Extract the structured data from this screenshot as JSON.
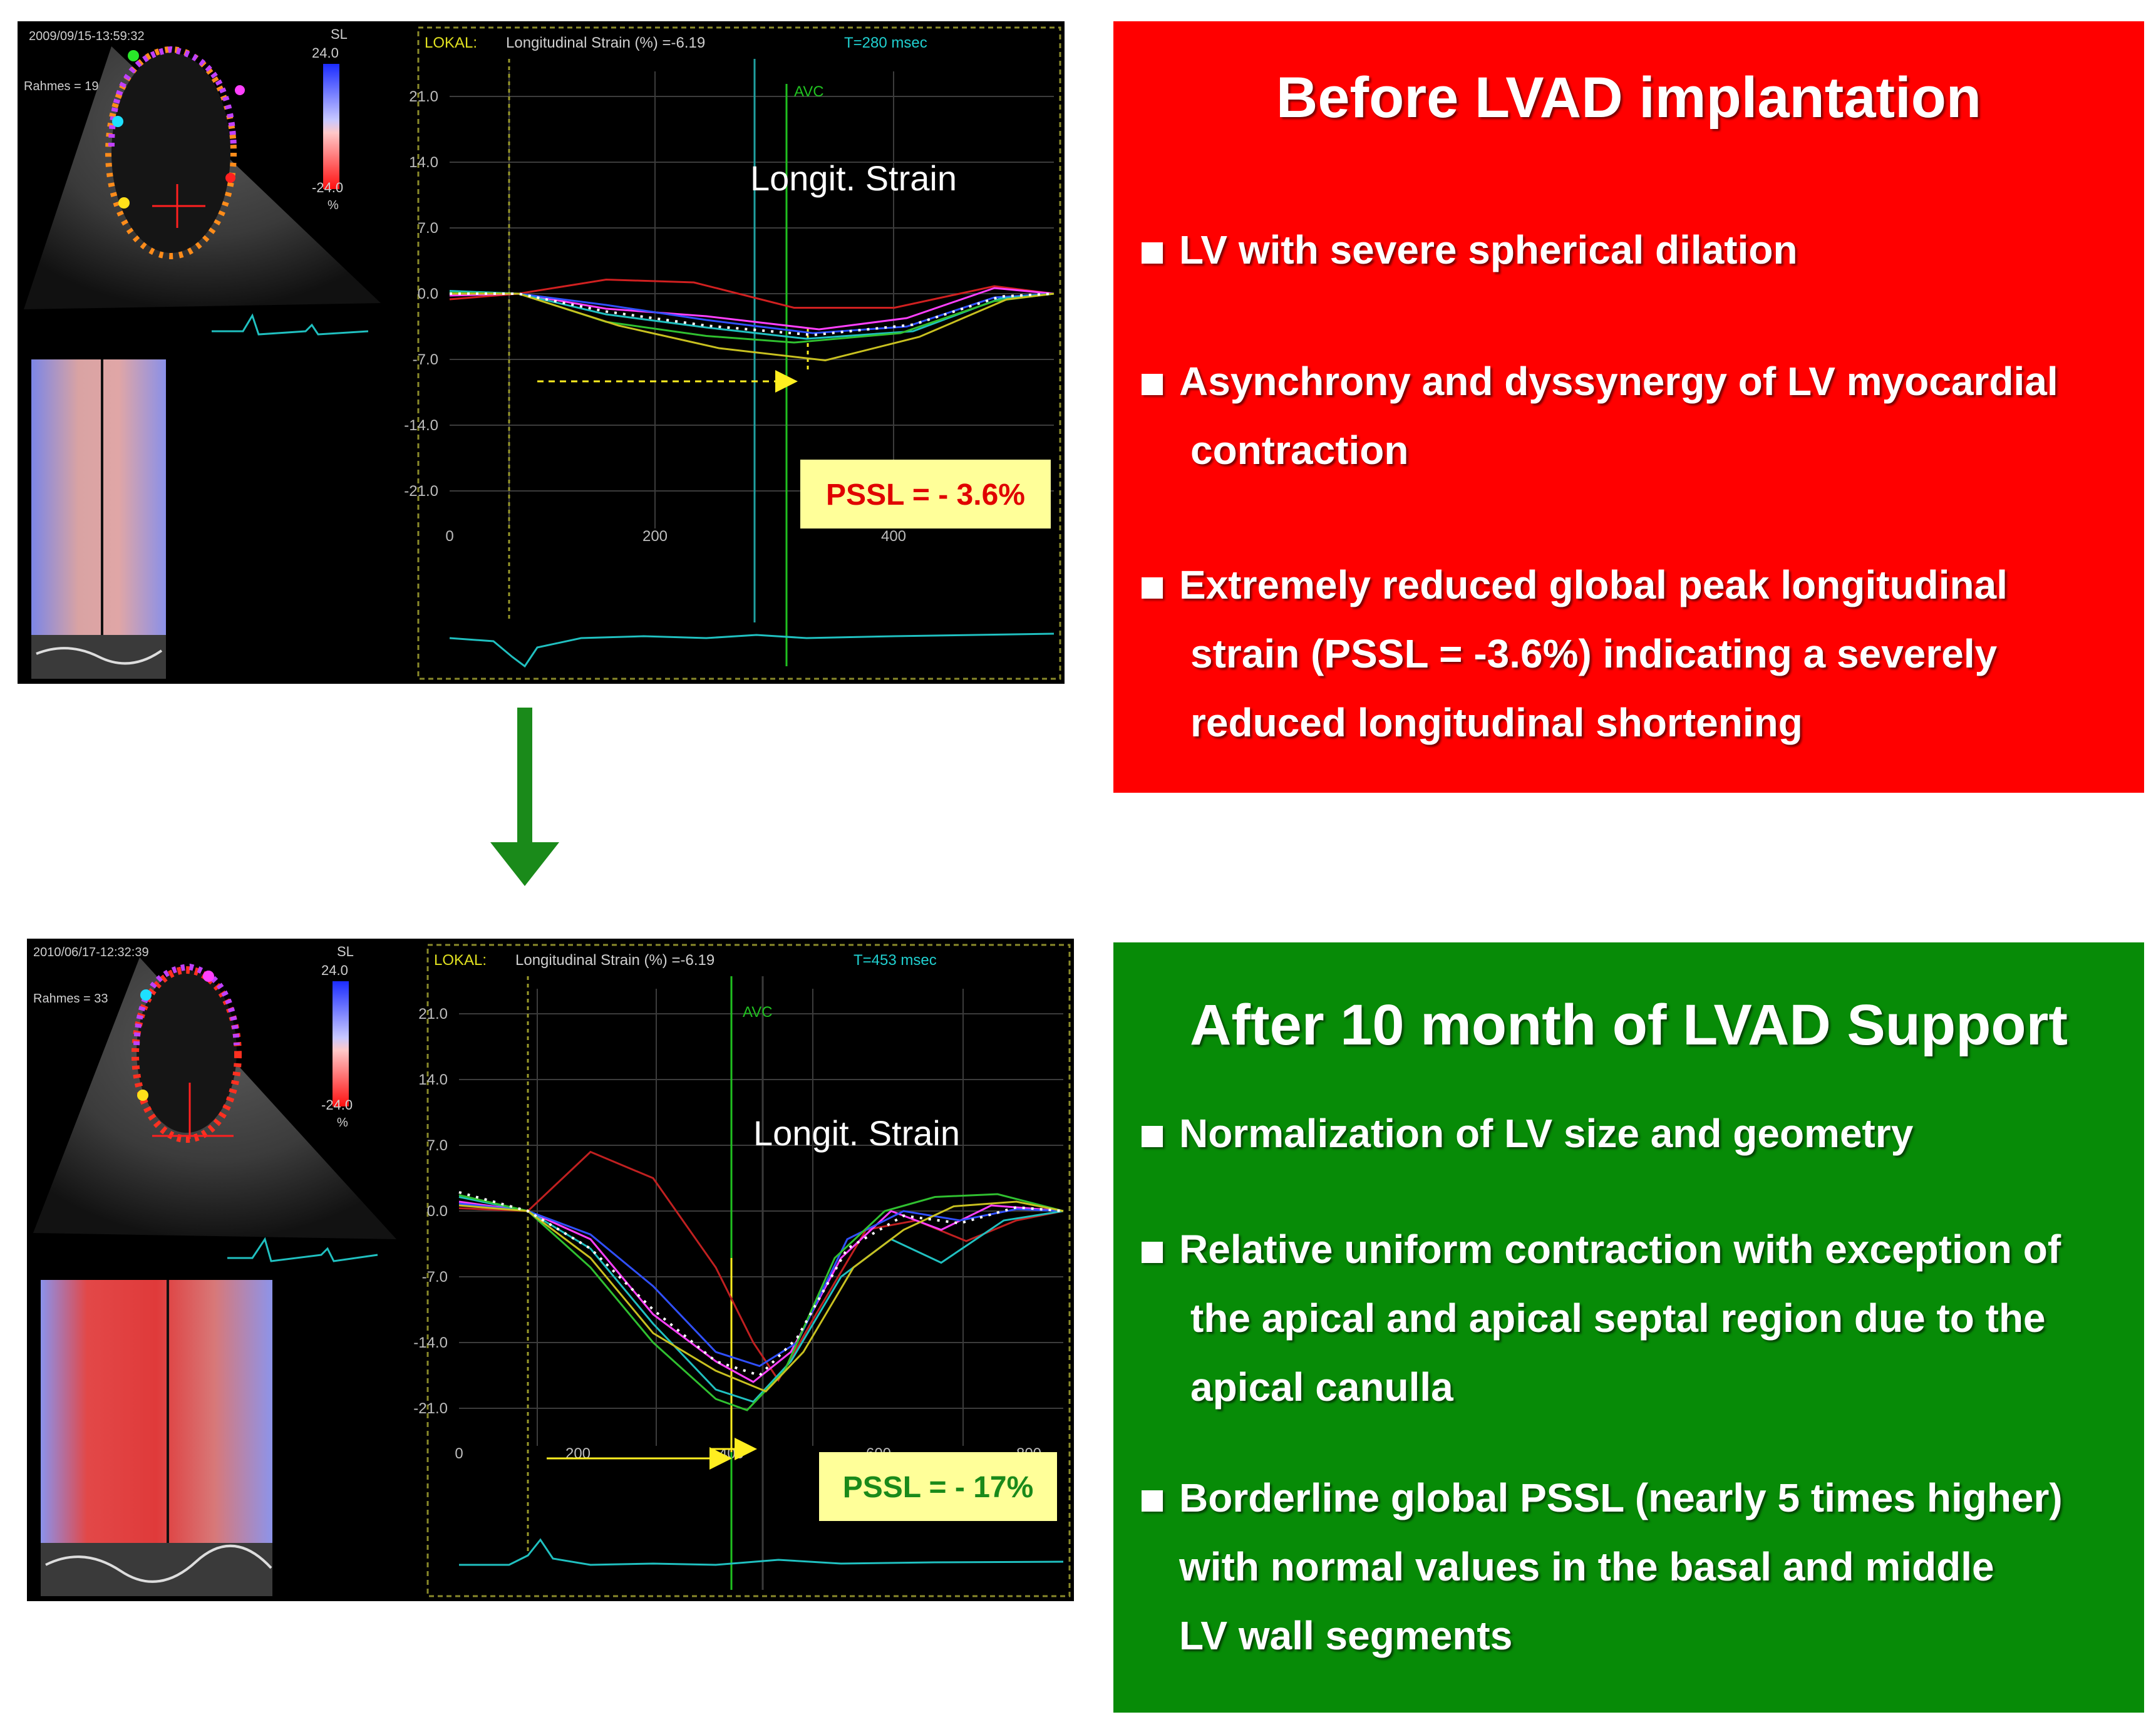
{
  "top_panel": {
    "timestamp": "2009/09/15-13:59:32",
    "name_label": "Rahmes = 19",
    "scale_label": "SL",
    "scale_max": "24.0",
    "scale_min": "-24.0",
    "scale_unit": "%",
    "header_left": "LOKAL:",
    "header_mid": "Longitudinal Strain (%) =-6.19",
    "header_right": "T=280 msec",
    "avc_label": "AVC",
    "chart_title": "Longit. Strain",
    "pssl_label": "PSSL = - 3.6%",
    "y_ticks": [
      "21.0",
      "14.0",
      "7.0",
      "0.0",
      "-7.0",
      "-14.0",
      "-21.0"
    ],
    "x_ticks": [
      "0",
      "200",
      "400"
    ]
  },
  "bottom_panel": {
    "timestamp": "2010/06/17-12:32:39",
    "name_label": "Rahmes = 33",
    "scale_label": "SL",
    "scale_max": "24.0",
    "scale_min": "-24.0",
    "scale_unit": "%",
    "header_left": "LOKAL:",
    "header_mid": "Longitudinal Strain (%) =-6.19",
    "header_right": "T=453 msec",
    "avc_label": "AVC",
    "chart_title": "Longit. Strain",
    "pssl_label": "PSSL = - 17%",
    "y_ticks": [
      "21.0",
      "14.0",
      "7.0",
      "0.0",
      "-7.0",
      "-14.0",
      "-21.0"
    ],
    "x_ticks": [
      "0",
      "200",
      "400",
      "600",
      "800"
    ]
  },
  "before_box": {
    "title": "Before LVAD implantation",
    "bullets": [
      {
        "lines": [
          "LV with severe spherical dilation"
        ]
      },
      {
        "lines": [
          "Asynchrony and dyssynergy of LV myocardial",
          "contraction"
        ]
      },
      {
        "lines": [
          "Extremely reduced global peak longitudinal",
          "strain (PSSL = -3.6%) indicating a severely",
          "reduced longitudinal shortening"
        ]
      }
    ],
    "color": "#ff0000"
  },
  "after_box": {
    "title": "After 10 month of LVAD Support",
    "bullets": [
      {
        "lines": [
          "Normalization of LV size and geometry"
        ]
      },
      {
        "lines": [
          "Relative uniform contraction with exception of",
          "the apical and apical septal region due to the",
          "apical canulla"
        ]
      },
      {
        "lines": [
          "Borderline global PSSL (nearly 5 times higher)",
          "with normal values in the basal and middle",
          "LV wall segments"
        ]
      }
    ],
    "color": "#078b07"
  },
  "arrow_color": "#1a8a1a"
}
